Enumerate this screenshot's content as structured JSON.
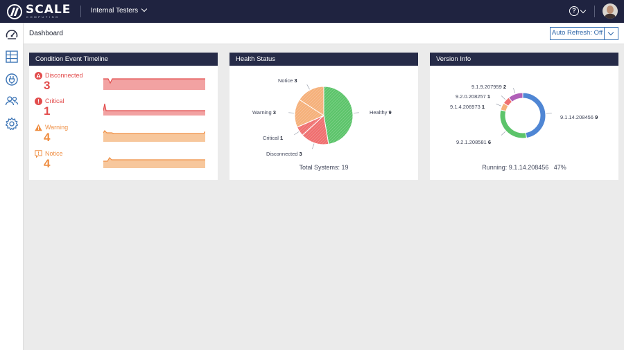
{
  "brand": {
    "word": "SCALE",
    "sub": "COMPUTING"
  },
  "topbar": {
    "org": "Internal Testers",
    "help": "?"
  },
  "header": {
    "title": "Dashboard",
    "auto_refresh": "Auto Refresh: Off"
  },
  "colors": {
    "critical": "#e24c4c",
    "warning": "#ef8f44",
    "healthy": "#5cc46a",
    "disconnected_slice": "#ef6f6f",
    "warning_slice": "#f5b07a",
    "notice_slice": "#f5b07a",
    "navy": "#262b48",
    "accent": "#3a73b5"
  },
  "conditions": {
    "title": "Condition Event Timeline",
    "items": [
      {
        "name": "Disconnected",
        "count": "3",
        "icon": "alert-icon",
        "color": "#e24c4c",
        "fill": "#f2a2a2"
      },
      {
        "name": "Critical",
        "count": "1",
        "icon": "error-icon",
        "color": "#e24c4c",
        "fill": "#f2a2a2"
      },
      {
        "name": "Warning",
        "count": "4",
        "icon": "warning-icon",
        "color": "#ef8f44",
        "fill": "#f7c79c"
      },
      {
        "name": "Notice",
        "count": "4",
        "icon": "notice-icon",
        "color": "#ef8f44",
        "fill": "#f7c79c"
      }
    ]
  },
  "health": {
    "title": "Health Status",
    "total_label": "Total Systems: 19",
    "chart_data": {
      "type": "pie",
      "categories": [
        "Healthy",
        "Disconnected",
        "Critical",
        "Warning",
        "Notice"
      ],
      "values": [
        9,
        3,
        1,
        3,
        3
      ],
      "colors": [
        "#5cc46a",
        "#ef6f6f",
        "#ef6f6f",
        "#f5b07a",
        "#f5b07a"
      ]
    }
  },
  "version": {
    "title": "Version Info",
    "running_label": "Running: 9.1.14.208456",
    "running_pct": "47%",
    "chart_data": {
      "type": "pie",
      "categories": [
        "9.1.14.208456",
        "9.2.1.208581",
        "9.1.4.206973",
        "9.2.0.208257",
        "9.1.9.207959"
      ],
      "values": [
        9,
        6,
        1,
        1,
        2
      ],
      "colors": [
        "#4f86d4",
        "#5cc46a",
        "#f5b07a",
        "#ef6f6f",
        "#b060b8"
      ]
    }
  }
}
